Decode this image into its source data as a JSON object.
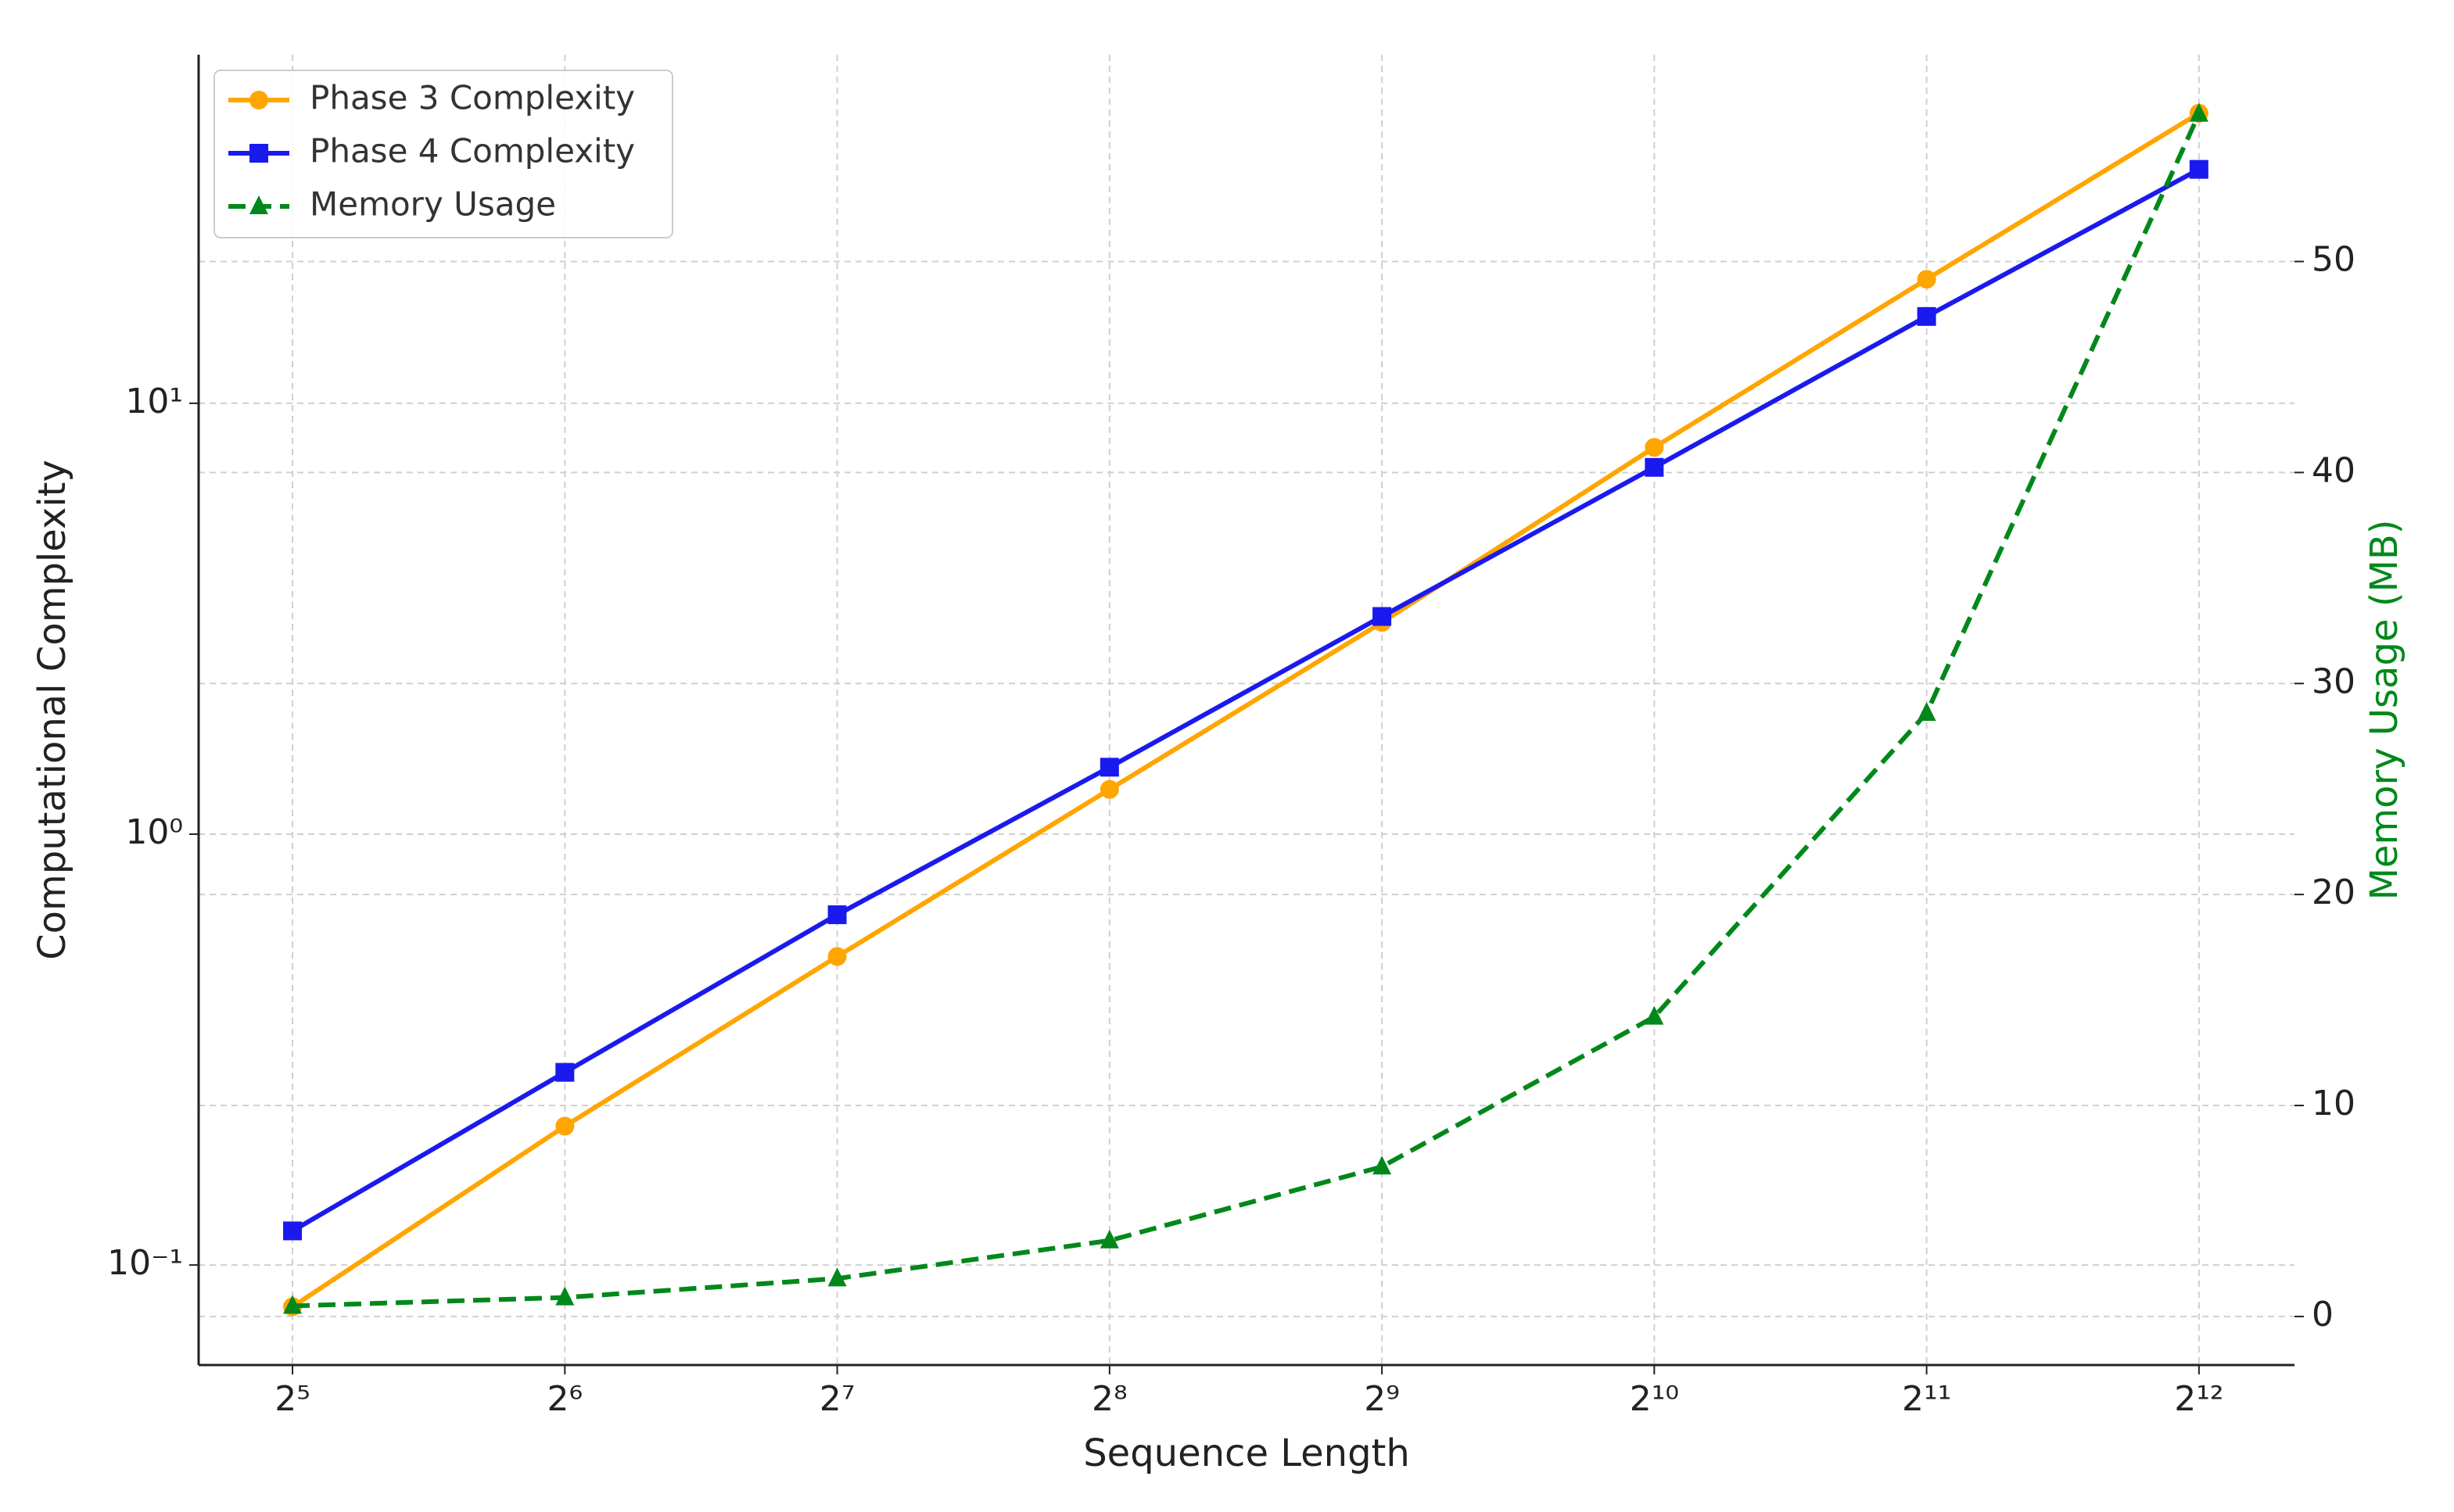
{
  "chart_data": {
    "type": "line",
    "x_label": "Sequence Length",
    "y_label": "Computational Complexity",
    "y2_label": "Memory Usage (MB)",
    "x": [
      32,
      64,
      128,
      256,
      512,
      1024,
      2048,
      4096
    ],
    "xscale": "log",
    "yscale": "log",
    "xlim": [
      25.2,
      5223
    ],
    "ylim": [
      0.0586,
      64.4
    ],
    "y2lim": [
      -2.3,
      59.8
    ],
    "xticks": [
      {
        "value": 32,
        "label": "2⁵"
      },
      {
        "value": 64,
        "label": "2⁶"
      },
      {
        "value": 128,
        "label": "2⁷"
      },
      {
        "value": 256,
        "label": "2⁸"
      },
      {
        "value": 512,
        "label": "2⁹"
      },
      {
        "value": 1024,
        "label": "2¹⁰"
      },
      {
        "value": 2048,
        "label": "2¹¹"
      },
      {
        "value": 4096,
        "label": "2¹²"
      }
    ],
    "yticks": [
      {
        "value": 0.1,
        "label": "10⁻¹"
      },
      {
        "value": 1,
        "label": "10⁰"
      },
      {
        "value": 10,
        "label": "10¹"
      }
    ],
    "y2ticks": [
      0,
      10,
      20,
      30,
      40,
      50
    ],
    "grid": true,
    "legend_loc": "upper left",
    "series": [
      {
        "name": "Phase 3 Complexity",
        "color": "#ffa500",
        "marker": "circle",
        "linestyle": "solid",
        "values": [
          0.08,
          0.21,
          0.52,
          1.27,
          3.1,
          7.9,
          19.4,
          47.1
        ]
      },
      {
        "name": "Phase 4 Complexity",
        "color": "#1a1aee",
        "marker": "square",
        "linestyle": "solid",
        "values": [
          0.12,
          0.28,
          0.65,
          1.43,
          3.2,
          7.1,
          15.9,
          34.9
        ]
      },
      {
        "name": "Memory Usage",
        "color": "#00881a",
        "marker": "triangle",
        "linestyle": "dashed",
        "axis": "y2",
        "values": [
          0.5,
          0.9,
          1.8,
          3.6,
          7.1,
          14.2,
          28.6,
          57.0
        ]
      }
    ]
  }
}
